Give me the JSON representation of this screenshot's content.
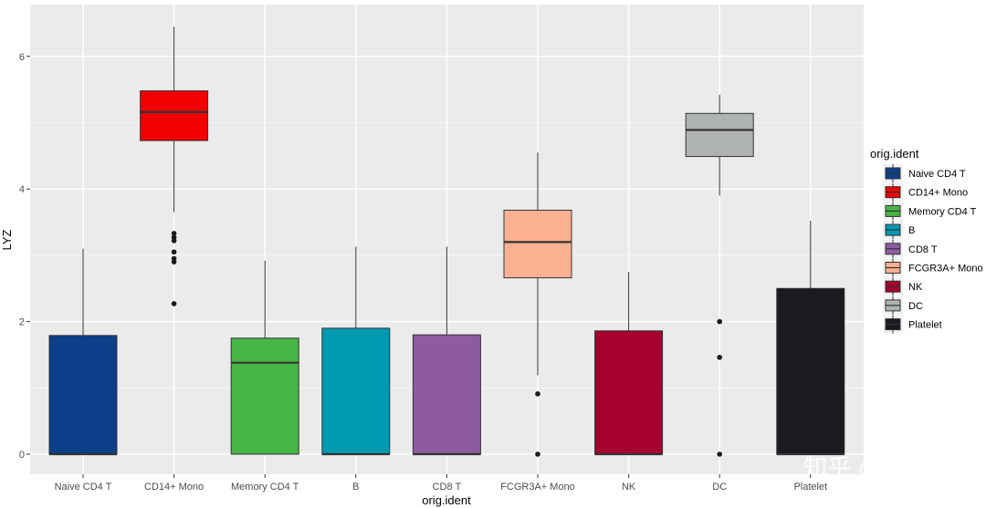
{
  "chart_data": {
    "type": "boxplot",
    "title": "",
    "xlabel": "orig.ident",
    "ylabel": "LYZ",
    "ylim": [
      -0.3,
      6.5
    ],
    "yticks": [
      0,
      2,
      4,
      6
    ],
    "grid": true,
    "legend_title": "orig.ident",
    "legend_position": "right",
    "categories": [
      "Naive CD4 T",
      "CD14+ Mono",
      "Memory CD4 T",
      "B",
      "CD8 T",
      "FCGR3A+ Mono",
      "NK",
      "DC",
      "Platelet"
    ],
    "colors": [
      "#0b3f8a",
      "#f20000",
      "#45b545",
      "#0099b2",
      "#8f5ba0",
      "#fbb092",
      "#a5002e",
      "#aeb3b1",
      "#1b1a1f"
    ],
    "boxes": [
      {
        "name": "Naive CD4 T",
        "lower_whisker": 0,
        "q1": 0,
        "median": 0,
        "q3": 1.79,
        "upper_whisker": 3.1,
        "outliers": []
      },
      {
        "name": "CD14+ Mono",
        "lower_whisker": 3.65,
        "q1": 4.73,
        "median": 5.16,
        "q3": 5.48,
        "upper_whisker": 6.45,
        "outliers": [
          3.33,
          3.27,
          3.22,
          3.05,
          2.95,
          2.9,
          2.27
        ]
      },
      {
        "name": "Memory CD4 T",
        "lower_whisker": 0,
        "q1": 0,
        "median": 1.38,
        "q3": 1.75,
        "upper_whisker": 2.92,
        "outliers": []
      },
      {
        "name": "B",
        "lower_whisker": 0,
        "q1": 0,
        "median": 0,
        "q3": 1.9,
        "upper_whisker": 3.13,
        "outliers": []
      },
      {
        "name": "CD8 T",
        "lower_whisker": 0,
        "q1": 0,
        "median": 0,
        "q3": 1.8,
        "upper_whisker": 3.13,
        "outliers": []
      },
      {
        "name": "FCGR3A+ Mono",
        "lower_whisker": 1.19,
        "q1": 2.66,
        "median": 3.2,
        "q3": 3.68,
        "upper_whisker": 4.55,
        "outliers": [
          0.91,
          0
        ]
      },
      {
        "name": "NK",
        "lower_whisker": 0,
        "q1": 0,
        "median": 0,
        "q3": 1.86,
        "upper_whisker": 2.75,
        "outliers": []
      },
      {
        "name": "DC",
        "lower_whisker": 3.9,
        "q1": 4.49,
        "median": 4.89,
        "q3": 5.14,
        "upper_whisker": 5.42,
        "outliers": [
          2.0,
          1.46,
          0
        ]
      },
      {
        "name": "Platelet",
        "lower_whisker": 0,
        "q1": 0,
        "median": 0,
        "q3": 2.5,
        "upper_whisker": 3.52,
        "outliers": []
      }
    ]
  },
  "watermark": "知乎 @酸菜"
}
